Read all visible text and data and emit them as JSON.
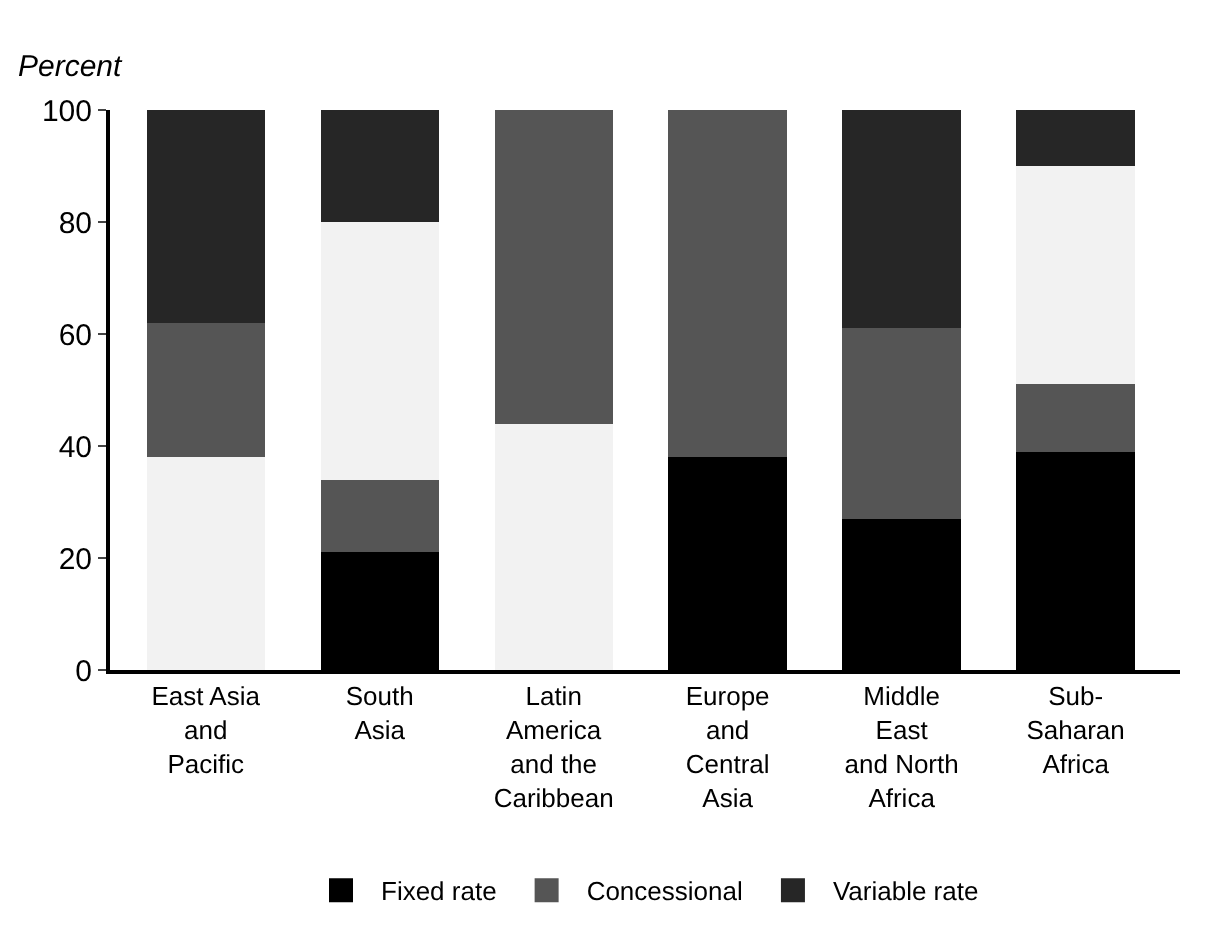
{
  "chart_data": {
    "type": "bar",
    "stacked": true,
    "ylabel": "Percent",
    "categories": [
      "East Asia\nand\nPacific",
      "South\nAsia",
      "Latin\nAmerica\nand the\nCaribbean",
      "Europe\nand\nCentral\nAsia",
      "Middle\nEast\nand North\nAfrica",
      "Sub-\nSaharan\nAfrica"
    ],
    "series": [
      {
        "color": "#f2f2f2",
        "values": [
          38,
          0,
          44,
          0,
          0,
          0
        ]
      },
      {
        "name": "Fixed rate",
        "color": "#000000",
        "values": [
          0,
          21,
          0,
          38,
          27,
          39
        ]
      },
      {
        "name": "Concessional",
        "color": "#555555",
        "values": [
          24,
          13,
          56,
          62,
          34,
          12
        ]
      },
      {
        "color": "#f2f2f2",
        "values": [
          0,
          46,
          0,
          0,
          0,
          39
        ]
      },
      {
        "name": "Variable rate",
        "color": "#262626",
        "values": [
          38,
          20,
          0,
          0,
          39,
          10
        ]
      }
    ],
    "ylim": [
      0,
      100
    ],
    "yticks": [
      0,
      20,
      40,
      60,
      80,
      100
    ],
    "legend": "bottom"
  }
}
